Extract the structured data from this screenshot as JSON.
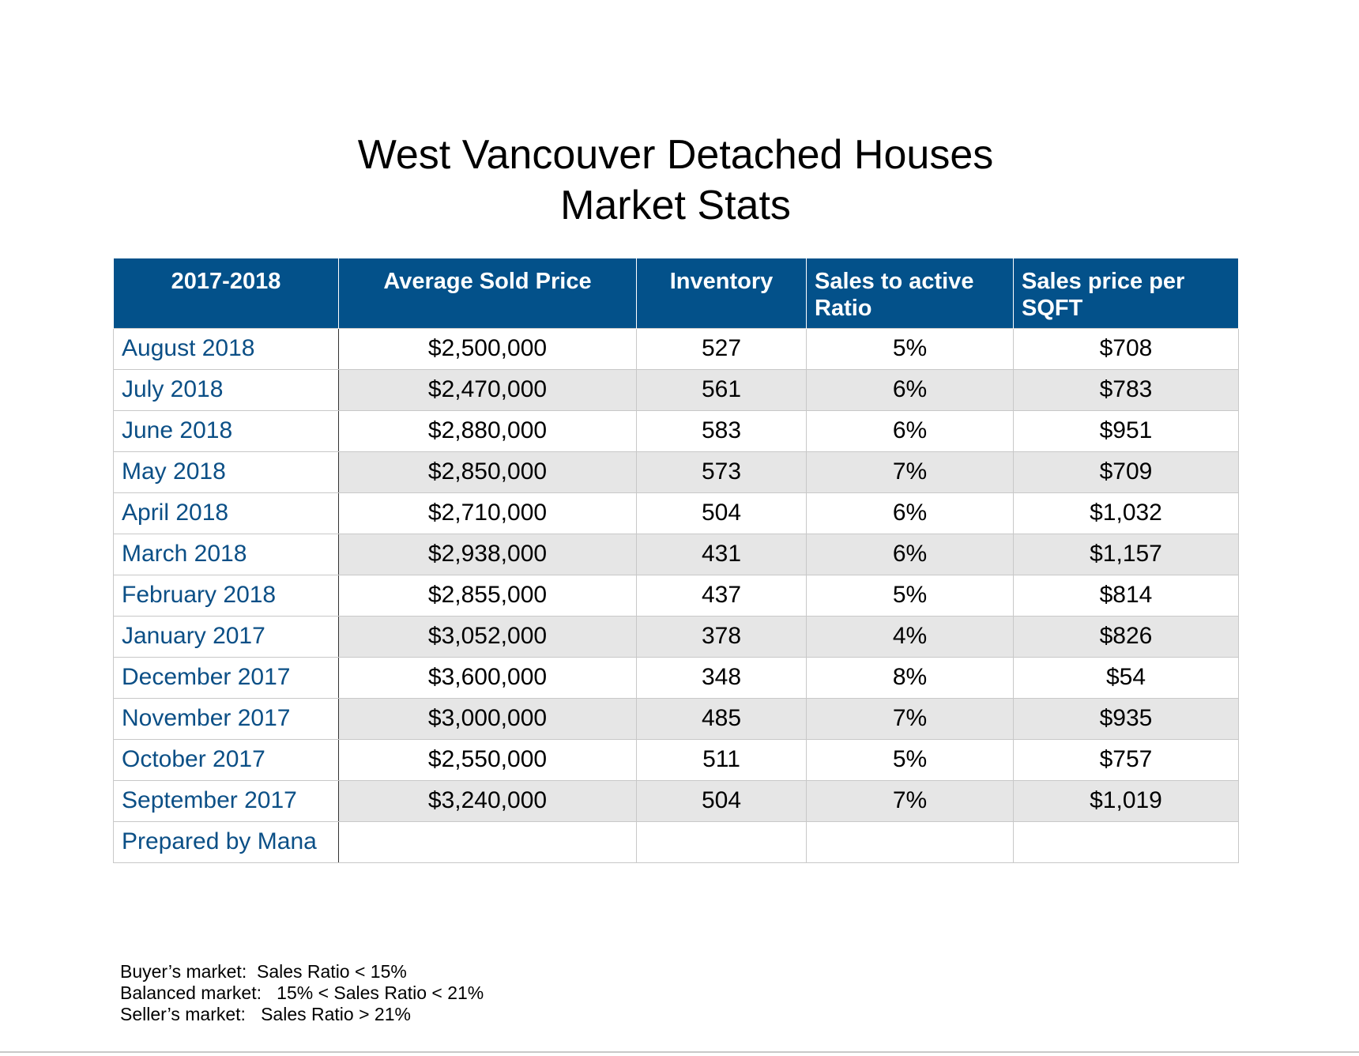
{
  "title": {
    "line1": "West Vancouver Detached Houses",
    "line2": "Market Stats"
  },
  "table": {
    "headers": [
      "2017-2018",
      "Average Sold Price",
      "Inventory",
      "Sales to active Ratio",
      "Sales price per SQFT"
    ],
    "rows": [
      {
        "period": "August 2018",
        "avg_price": "$2,500,000",
        "inventory": "527",
        "ratio": "5%",
        "price_sqft": "$708"
      },
      {
        "period": "July 2018",
        "avg_price": "$2,470,000",
        "inventory": "561",
        "ratio": "6%",
        "price_sqft": "$783"
      },
      {
        "period": "June 2018",
        "avg_price": "$2,880,000",
        "inventory": "583",
        "ratio": "6%",
        "price_sqft": "$951"
      },
      {
        "period": "May 2018",
        "avg_price": "$2,850,000",
        "inventory": "573",
        "ratio": "7%",
        "price_sqft": "$709"
      },
      {
        "period": "April 2018",
        "avg_price": "$2,710,000",
        "inventory": "504",
        "ratio": "6%",
        "price_sqft": "$1,032"
      },
      {
        "period": "March 2018",
        "avg_price": "$2,938,000",
        "inventory": "431",
        "ratio": "6%",
        "price_sqft": "$1,157"
      },
      {
        "period": "February 2018",
        "avg_price": "$2,855,000",
        "inventory": "437",
        "ratio": "5%",
        "price_sqft": "$814"
      },
      {
        "period": "January 2017",
        "avg_price": "$3,052,000",
        "inventory": "378",
        "ratio": "4%",
        "price_sqft": "$826"
      },
      {
        "period": "December 2017",
        "avg_price": "$3,600,000",
        "inventory": "348",
        "ratio": "8%",
        "price_sqft": "$54"
      },
      {
        "period": "November 2017",
        "avg_price": "$3,000,000",
        "inventory": "485",
        "ratio": "7%",
        "price_sqft": "$935"
      },
      {
        "period": "October 2017",
        "avg_price": "$2,550,000",
        "inventory": "511",
        "ratio": "5%",
        "price_sqft": "$757"
      },
      {
        "period": "September 2017",
        "avg_price": "$3,240,000",
        "inventory": "504",
        "ratio": "7%",
        "price_sqft": "$1,019"
      },
      {
        "period": "Prepared by Mana",
        "avg_price": "",
        "inventory": "",
        "ratio": "",
        "price_sqft": ""
      }
    ]
  },
  "legend": {
    "line1": "Buyer’s market:  Sales Ratio < 15%",
    "line2": "Balanced market:   15% < Sales Ratio < 21%",
    "line3": "Seller’s market:   Sales Ratio > 21%"
  },
  "colors": {
    "header_bg": "#03518a",
    "label_text": "#0b4f86",
    "alt_row_bg": "#e6e6e6"
  }
}
